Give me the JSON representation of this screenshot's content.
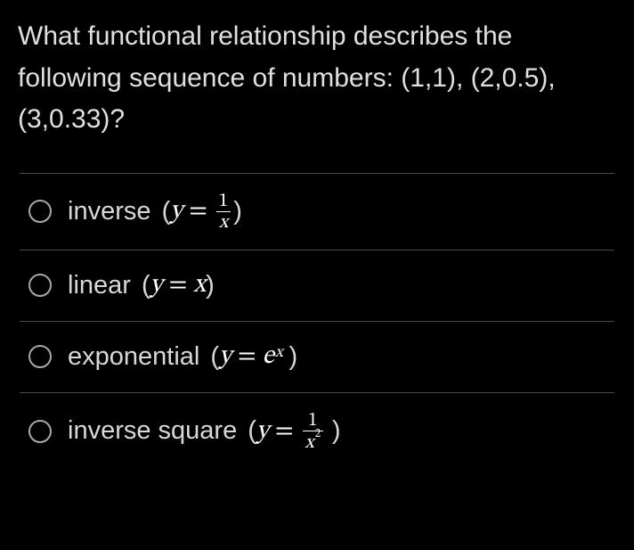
{
  "question": {
    "text": "What functional relationship describes the following sequence of numbers: (1,1), (2,0.5), (3,0.33)?",
    "text_color": "#e0e0e0",
    "fontsize": 30
  },
  "options": [
    {
      "id": "inverse",
      "label": "inverse",
      "formula_prefix": "(",
      "lhs": "y",
      "op": "=",
      "rhs_type": "fraction",
      "rhs_num": "1",
      "rhs_den": "x",
      "formula_suffix": ")"
    },
    {
      "id": "linear",
      "label": "linear",
      "formula_prefix": "(",
      "lhs": "y",
      "op": "=",
      "rhs_type": "plain",
      "rhs": "x",
      "formula_suffix": ")"
    },
    {
      "id": "exponential",
      "label": "exponential",
      "formula_prefix": "(",
      "lhs": "y",
      "op": "=",
      "rhs_type": "exp",
      "rhs_base": "e",
      "rhs_exp": "x",
      "formula_suffix": ")"
    },
    {
      "id": "inverse-square",
      "label": "inverse square",
      "formula_prefix": "(",
      "lhs": "y",
      "op": "=",
      "rhs_type": "fraction",
      "rhs_num": "1",
      "rhs_den_base": "x",
      "rhs_den_exp": "2",
      "formula_suffix": ")"
    }
  ],
  "style": {
    "background": "#000000",
    "text_color": "#d8d8d8",
    "math_color": "#ffffff",
    "divider_color": "#4a4a4a",
    "radio_border": "#a8a8a8",
    "option_fontsize": 29
  }
}
